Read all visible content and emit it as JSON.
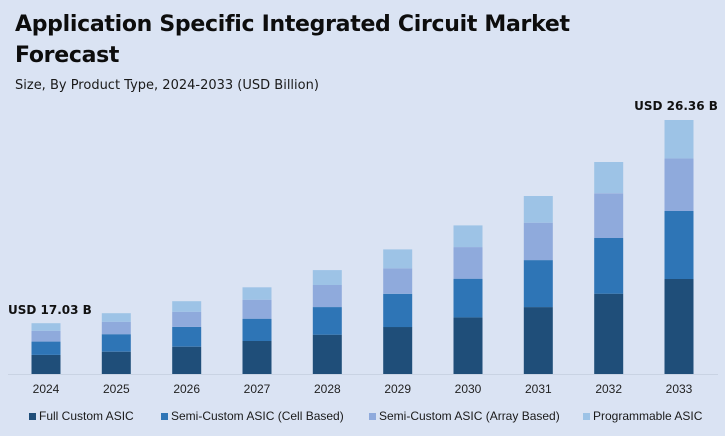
{
  "header": {
    "title": "Application Specific Integrated Circuit Market Forecast",
    "subtitle": "Size, By Product Type, 2024-2033 (USD Billion)"
  },
  "colors": {
    "background": "#dae3f3",
    "full_custom": "#1f4e79",
    "semi_cell": "#2e75b6",
    "semi_array": "#8faadc",
    "programmable": "#9dc3e6"
  },
  "chart_data": {
    "type": "bar",
    "stacked": true,
    "title": "Application Specific Integrated Circuit Market Forecast",
    "subtitle": "Size, By Product Type, 2024-2033 (USD Billion)",
    "xlabel": "",
    "ylabel": "",
    "categories": [
      "2024",
      "2025",
      "2026",
      "2027",
      "2028",
      "2029",
      "2030",
      "2031",
      "2032",
      "2033"
    ],
    "series": [
      {
        "name": "Full Custom ASIC",
        "values": [
          6.41,
          6.42,
          6.78,
          7.12,
          7.36,
          7.7,
          8.2,
          8.6,
          9.26,
          9.86
        ]
      },
      {
        "name": "Semi-Custom ASIC (Cell Based)",
        "values": [
          4.47,
          5.02,
          4.89,
          4.8,
          5.18,
          5.45,
          5.6,
          6.04,
          6.42,
          7.06
        ]
      },
      {
        "name": "Semi-Custom ASIC (Array Based)",
        "values": [
          3.57,
          3.55,
          3.72,
          4.09,
          4.13,
          4.17,
          4.58,
          4.8,
          5.15,
          5.46
        ]
      },
      {
        "name": "Programmable ASIC",
        "values": [
          2.58,
          2.5,
          2.65,
          2.67,
          2.8,
          3.1,
          3.14,
          3.43,
          3.6,
          3.98
        ]
      }
    ],
    "totals": [
      17.03,
      17.49,
      18.04,
      18.68,
      19.47,
      20.42,
      21.52,
      22.87,
      24.43,
      26.36
    ],
    "ylim": [
      14.7,
      27
    ],
    "grid": false,
    "y_axis_visible": false,
    "legend": "bottom",
    "annotations": [
      {
        "category": "2024",
        "text": "USD 17.03 B"
      },
      {
        "category": "2033",
        "text": "USD 26.36 B"
      }
    ]
  }
}
